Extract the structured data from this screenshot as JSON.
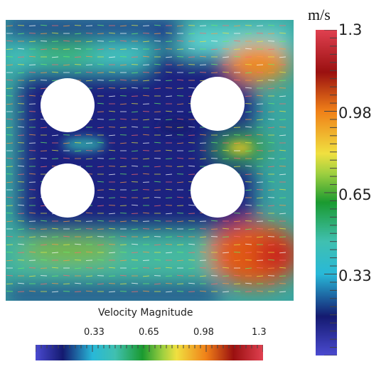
{
  "colorbar_vertical": {
    "unit": "m/s",
    "ticks": [
      "1.3",
      "0.98",
      "0.65",
      "0.33"
    ],
    "min": 0,
    "max": 1.3
  },
  "colorbar_horizontal": {
    "title": "Velocity Magnitude",
    "ticks": [
      "0.33",
      "0.65",
      "0.98",
      "1.3"
    ]
  },
  "colors": {
    "low": "#2a2fb0",
    "mid_low": "#2fc4c8",
    "mid": "#4fb83a",
    "mid_high": "#f0c020",
    "high": "#e03828",
    "max": "#b01020"
  },
  "obstacles": "four white circular cylinders"
}
